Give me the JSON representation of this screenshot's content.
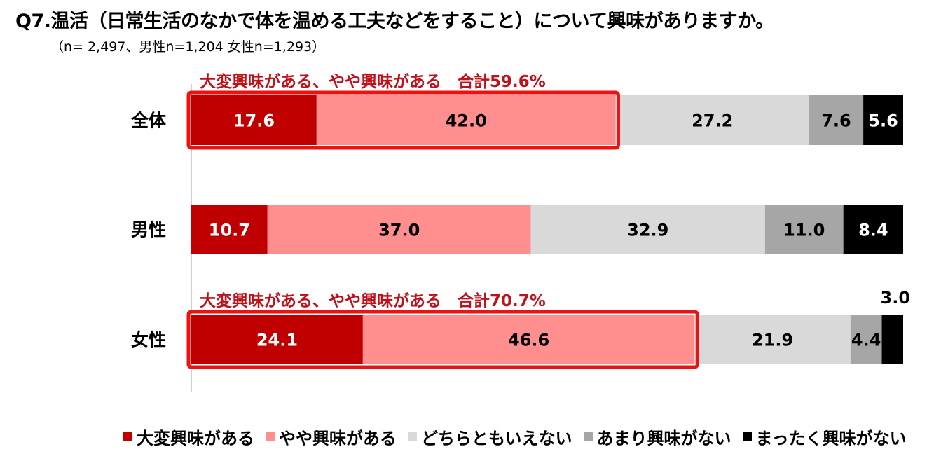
{
  "title": "Q7.温活（日常生活のなかで体を温める工夫などをすること）について興味がありますか。",
  "subtitle": "（n= 2,497、男性n=1,204 女性n=1,293）",
  "colors": {
    "very_interested": "#c00000",
    "somewhat_interested": "#ff8f8f",
    "neutral": "#d9d9d9",
    "not_very": "#a6a6a6",
    "not_at_all": "#000000",
    "highlight": "#ee1111"
  },
  "chart_data": {
    "type": "bar",
    "orientation": "horizontal",
    "stacked": true,
    "percent": true,
    "xlim": [
      0,
      100
    ],
    "categories": [
      "全体",
      "男性",
      "女性"
    ],
    "series": [
      {
        "name": "大変興味がある",
        "values": [
          17.6,
          10.7,
          24.1
        ]
      },
      {
        "name": "やや興味がある",
        "values": [
          42.0,
          37.0,
          46.6
        ]
      },
      {
        "name": "どちらともいえない",
        "values": [
          27.2,
          32.9,
          21.9
        ]
      },
      {
        "name": "あまり興味がない",
        "values": [
          7.6,
          11.0,
          4.4
        ]
      },
      {
        "name": "まったく興味がない",
        "values": [
          5.6,
          8.4,
          3.0
        ]
      }
    ],
    "value_labels": [
      [
        "17.6",
        "42.0",
        "27.2",
        "7.6",
        "5.6"
      ],
      [
        "10.7",
        "37.0",
        "32.9",
        "11.0",
        "8.4"
      ],
      [
        "24.1",
        "46.6",
        "21.9",
        "4.4",
        "3.0"
      ]
    ],
    "annotations": [
      {
        "category": "全体",
        "text": "大変興味がある、やや興味がある　合計59.6%"
      },
      {
        "category": "女性",
        "text": "大変興味がある、やや興味がある　合計70.7%"
      }
    ],
    "legend_position": "bottom"
  }
}
